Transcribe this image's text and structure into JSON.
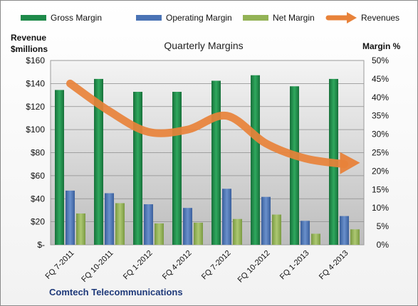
{
  "chart_data": {
    "type": "bar",
    "title": "Quarterly Margins",
    "left_axis_label": [
      "Revenue",
      "$millions"
    ],
    "right_axis_label": "Margin %",
    "categories": [
      "FQ 7-2011",
      "FQ 10-2011",
      "FQ 1-2012",
      "FQ 4-2012",
      "FQ 7-2012",
      "FQ 10-2012",
      "FQ 1-2013",
      "FQ 4-2013"
    ],
    "left_ticks": [
      "$-",
      "$20",
      "$40",
      "$60",
      "$80",
      "$100",
      "$120",
      "$140",
      "$160"
    ],
    "right_ticks": [
      "0%",
      "5%",
      "10%",
      "15%",
      "20%",
      "25%",
      "30%",
      "35%",
      "40%",
      "45%",
      "50%"
    ],
    "ylim_left": [
      0,
      160
    ],
    "ylim_right": [
      0,
      50
    ],
    "legend_position": "top",
    "grid": true,
    "series": [
      {
        "name": "Gross Margin",
        "axis": "right",
        "color": "#1e8a4a",
        "values": [
          42,
          45,
          41.5,
          41.5,
          44.5,
          46,
          43,
          45
        ]
      },
      {
        "name": "Operating Margin",
        "axis": "right",
        "color": "#4a73b5",
        "values": [
          14.7,
          14,
          11,
          10,
          15.2,
          13,
          6.5,
          7.8
        ]
      },
      {
        "name": "Net Margin",
        "axis": "right",
        "color": "#93b356",
        "values": [
          8.5,
          11.3,
          5.8,
          6,
          7,
          8.2,
          3,
          4.2
        ]
      },
      {
        "name": "Revenues",
        "axis": "left",
        "type": "line",
        "color": "#e8823a",
        "values": [
          140,
          116,
          98,
          100,
          112,
          88,
          75,
          70
        ]
      }
    ]
  },
  "footer": {
    "company": "Comtech Telecommunications"
  }
}
